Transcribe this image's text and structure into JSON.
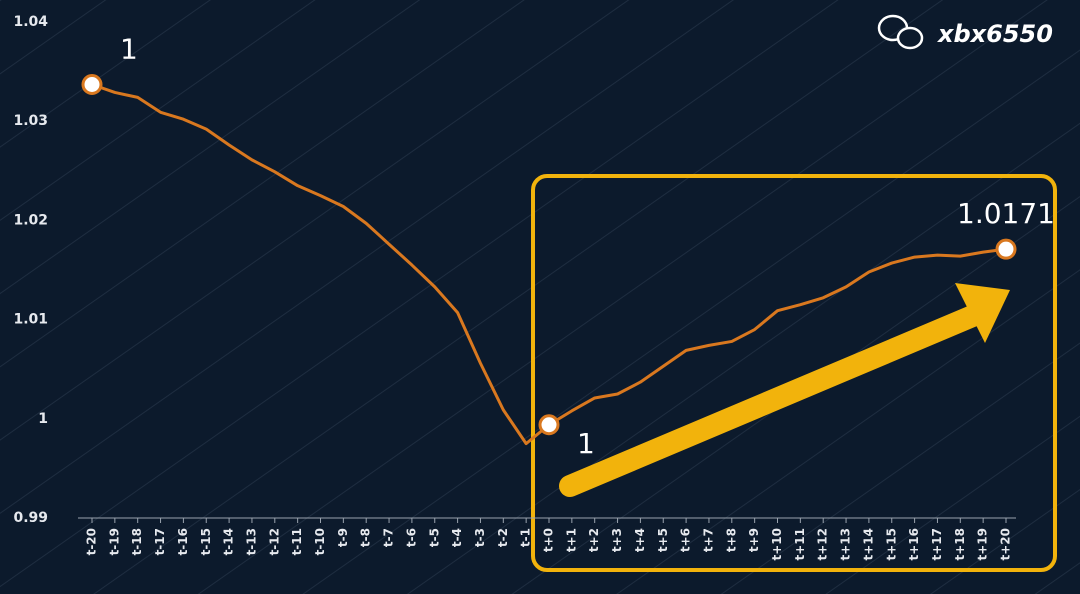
{
  "chart_data": {
    "type": "line",
    "categories": [
      "t-20",
      "t-19",
      "t-18",
      "t-17",
      "t-16",
      "t-15",
      "t-14",
      "t-13",
      "t-12",
      "t-11",
      "t-10",
      "t-9",
      "t-8",
      "t-7",
      "t-6",
      "t-5",
      "t-4",
      "t-3",
      "t-2",
      "t-1",
      "t+0",
      "t+1",
      "t+2",
      "t+3",
      "t+4",
      "t+5",
      "t+6",
      "t+7",
      "t+8",
      "t+9",
      "t+10",
      "t+11",
      "t+12",
      "t+13",
      "t+14",
      "t+15",
      "t+16",
      "t+17",
      "t+18",
      "t+19",
      "t+20"
    ],
    "series": [
      {
        "color": "#d9781f",
        "values": [
          1.0337,
          1.0329,
          1.0324,
          1.0309,
          1.0302,
          1.0292,
          1.0276,
          1.0261,
          1.0249,
          1.0235,
          1.0225,
          1.0214,
          1.0197,
          1.0176,
          1.0155,
          1.0133,
          1.0107,
          1.0056,
          1.0009,
          0.9975,
          0.9994,
          1.0008,
          1.0021,
          1.0025,
          1.0037,
          1.0053,
          1.0069,
          1.0074,
          1.0078,
          1.009,
          1.0109,
          1.0115,
          1.0122,
          1.0133,
          1.0148,
          1.0157,
          1.0163,
          1.0165,
          1.0164,
          1.0168,
          1.0171
        ]
      }
    ],
    "ylim": [
      0.99,
      1.04
    ],
    "yticks": [
      0.99,
      1,
      1.01,
      1.02,
      1.03,
      1.04
    ],
    "annotations": [
      {
        "text": "1",
        "point": 0
      },
      {
        "text": "1",
        "point": 20
      },
      {
        "text": "1.0171",
        "point": 40
      }
    ],
    "watermark": "xbx6550"
  }
}
